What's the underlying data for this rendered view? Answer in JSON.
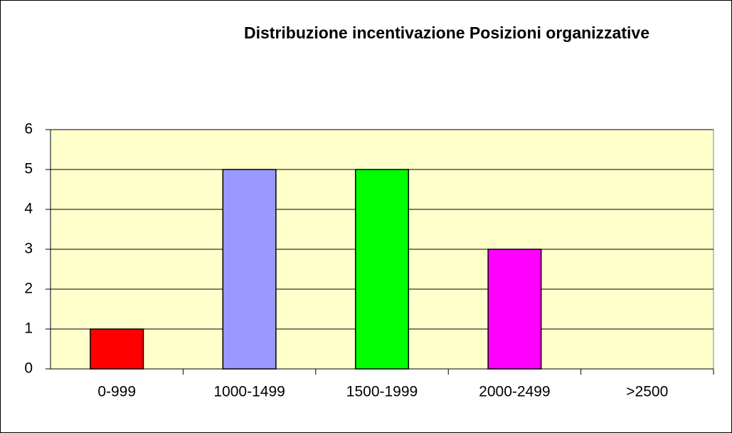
{
  "chart_data": {
    "type": "bar",
    "title": "Distribuzione incentivazione Posizioni organizzative",
    "categories": [
      "0-999",
      "1000-1499",
      "1500-1999",
      "2000-2499",
      ">2500"
    ],
    "values": [
      1,
      5,
      5,
      3,
      0
    ],
    "colors": [
      "#ff0000",
      "#9999ff",
      "#00ff00",
      "#ff00ff"
    ],
    "ylim": [
      0,
      6
    ],
    "yticks": [
      0,
      1,
      2,
      3,
      4,
      5,
      6
    ],
    "grid": true
  }
}
